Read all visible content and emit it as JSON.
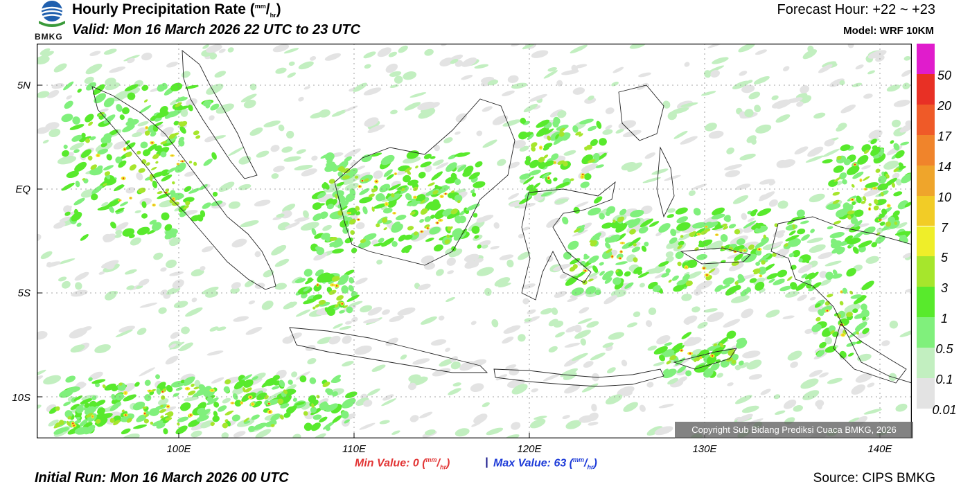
{
  "header": {
    "logo_text": "BMKG",
    "title": "Hourly Precipitation Rate",
    "title_unit_open": " (",
    "title_unit_num": "mm",
    "title_unit_slash": "/",
    "title_unit_den": "hr",
    "title_unit_close": ")",
    "valid": "Valid: Mon 16 March 2026 22 UTC to 23 UTC",
    "forecast_hour": "Forecast Hour: +22 ~ +23",
    "model": "Model: WRF 10KM"
  },
  "map": {
    "lat_labels": [
      "5N",
      "EQ",
      "5S",
      "10S"
    ],
    "lon_labels": [
      "100E",
      "110E",
      "120E",
      "130E",
      "140E"
    ],
    "copyright": "Copyright Sub Bidang Prediksi Cuaca BMKG, 2026",
    "rain_seed": 7
  },
  "legend": {
    "labels": [
      "50",
      "20",
      "17",
      "14",
      "10",
      "7",
      "5",
      "3",
      "1",
      "0.5",
      "0.1",
      "0.01"
    ],
    "colors": [
      "#e01ccc",
      "#e83025",
      "#ef5a28",
      "#f0842b",
      "#efa52b",
      "#f2cc26",
      "#efee29",
      "#a6e62c",
      "#58ea2c",
      "#80f07c",
      "#c2efc0",
      "#e3e3e3"
    ]
  },
  "footer": {
    "min_label": "Min Value:   0 (",
    "max_label": "Max Value:  63 (",
    "unit_num": "mm",
    "unit_slash": "/",
    "unit_den": "hr",
    "unit_close": ")",
    "separator": "|",
    "initial_run": "Initial Run: Mon 16 March 2026 00 UTC",
    "source": "Source: CIPS BMKG"
  }
}
